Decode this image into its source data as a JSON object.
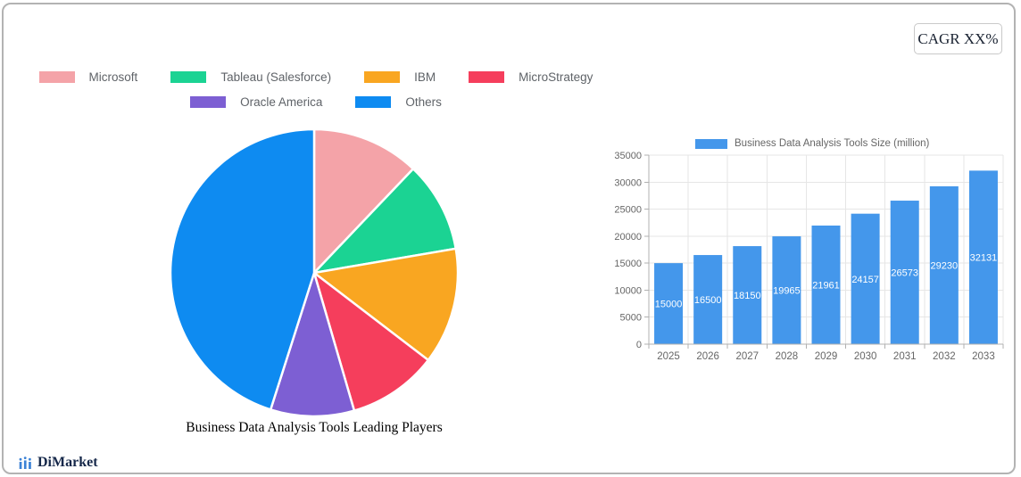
{
  "cagr_badge": {
    "label": "CAGR XX%"
  },
  "brand": {
    "name": "DiMarket"
  },
  "chart_data": [
    {
      "type": "pie",
      "title": "Business Data Analysis Tools Leading Players",
      "legend_position": "top",
      "slices": [
        {
          "label": "Microsoft",
          "value_pct": 12.1,
          "color": "#F4A3A8"
        },
        {
          "label": "Tableau (Salesforce)",
          "value_pct": 10.2,
          "color": "#1BD393"
        },
        {
          "label": "IBM",
          "value_pct": 13.1,
          "color": "#F9A621"
        },
        {
          "label": "MicroStrategy",
          "value_pct": 10.1,
          "color": "#F53E5C"
        },
        {
          "label": "Oracle America",
          "value_pct": 9.4,
          "color": "#7D5FD3"
        },
        {
          "label": "Others",
          "value_pct": 45.1,
          "color": "#0E8BF1"
        }
      ],
      "legend_rows": [
        [
          0,
          1,
          2,
          3
        ],
        [
          4,
          5
        ]
      ]
    },
    {
      "type": "bar",
      "legend_label": "Business Data Analysis Tools Size (million)",
      "categories": [
        "2025",
        "2026",
        "2027",
        "2028",
        "2029",
        "2030",
        "2031",
        "2032",
        "2033"
      ],
      "values": [
        15000,
        16500,
        18150,
        19965,
        21961,
        24157,
        26573,
        29230,
        32131
      ],
      "ylim": [
        0,
        35000
      ],
      "ytick_step": 5000,
      "yticks": [
        "0",
        "5000",
        "10000",
        "15000",
        "20000",
        "25000",
        "30000",
        "35000"
      ],
      "bar_color": "#4497EB",
      "grid": true,
      "value_label_color": "#ffffff",
      "axis_label_color": "#666666"
    }
  ]
}
